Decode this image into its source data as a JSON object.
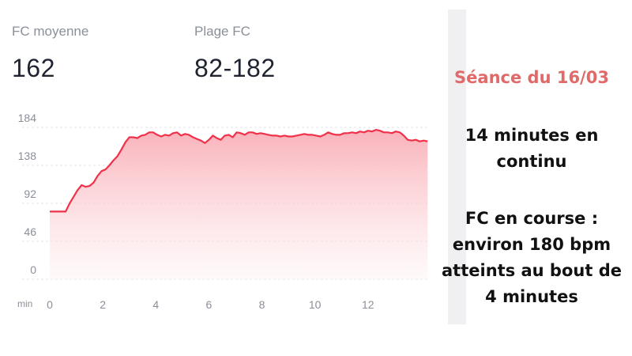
{
  "stats": {
    "avg_label": "FC moyenne",
    "avg_value": "162",
    "range_label": "Plage FC",
    "range_value": "82-182"
  },
  "note": {
    "title": "Séance du 16/03",
    "duration": [
      "14 minutes en",
      "continu"
    ],
    "hr": [
      "FC en course :",
      "environ 180 bpm",
      "atteints au bout de",
      "4 minutes"
    ]
  },
  "colors": {
    "line": "#f0314a",
    "fill_top": "#f8a9b2",
    "fill_bottom": "#fff4f5",
    "title_accent": "#e06a6a",
    "divider": "#f0f0f2"
  },
  "chart_data": {
    "type": "area",
    "xlabel": "min",
    "ylabel": "",
    "title": "",
    "xlim": [
      0,
      14.3
    ],
    "ylim": [
      0,
      184
    ],
    "yticks": [
      0,
      46,
      92,
      138,
      184
    ],
    "xticks": [
      0,
      2,
      4,
      6,
      8,
      10,
      12
    ],
    "grid": "horizontal dashed",
    "legend": "none",
    "series": [
      {
        "x": [
          0,
          0.6,
          0.75,
          0.9,
          1.05,
          1.2,
          1.35,
          1.5,
          1.65,
          1.8,
          1.95,
          2.1,
          2.25,
          2.4,
          2.55,
          2.7,
          2.85,
          3.0,
          3.15,
          3.3,
          3.45,
          3.6,
          3.75,
          3.9,
          4.05,
          4.2,
          4.35,
          4.5,
          4.65,
          4.8,
          4.95,
          5.1,
          5.25,
          5.4,
          5.55,
          5.7,
          5.85,
          6.0,
          6.15,
          6.3,
          6.45,
          6.6,
          6.75,
          6.9,
          7.05,
          7.2,
          7.35,
          7.5,
          7.65,
          7.8,
          7.95,
          8.1,
          8.25,
          8.4,
          8.55,
          8.7,
          8.85,
          9.0,
          9.15,
          9.3,
          9.45,
          9.6,
          9.75,
          9.9,
          10.05,
          10.2,
          10.35,
          10.5,
          10.65,
          10.8,
          10.95,
          11.1,
          11.25,
          11.4,
          11.55,
          11.7,
          11.85,
          12.0,
          12.15,
          12.3,
          12.45,
          12.6,
          12.75,
          12.9,
          13.05,
          13.2,
          13.35,
          13.5,
          13.65,
          13.8,
          13.95,
          14.1,
          14.25
        ],
        "y": [
          82,
          82,
          92,
          100,
          108,
          114,
          112,
          113,
          117,
          125,
          131,
          133,
          138,
          144,
          149,
          157,
          166,
          172,
          172,
          171,
          174,
          175,
          178,
          178,
          175,
          173,
          175,
          174,
          177,
          178,
          174,
          176,
          175,
          172,
          170,
          168,
          165,
          169,
          174,
          171,
          169,
          174,
          175,
          172,
          178,
          177,
          175,
          178,
          178,
          176,
          177,
          176,
          175,
          174,
          174,
          173,
          174,
          173,
          173,
          174,
          175,
          176,
          175,
          175,
          174,
          173,
          175,
          178,
          176,
          175,
          175,
          177,
          177,
          178,
          177,
          179,
          178,
          180,
          179,
          181,
          180,
          178,
          178,
          177,
          179,
          178,
          174,
          169,
          168,
          169,
          167,
          168,
          167
        ]
      }
    ]
  }
}
